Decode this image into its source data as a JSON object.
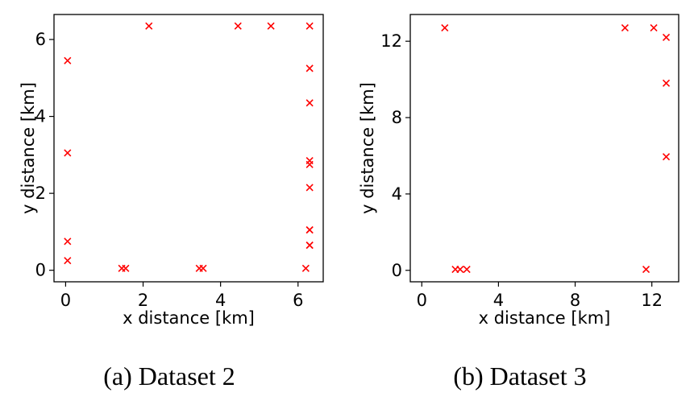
{
  "chart_data": [
    {
      "type": "scatter",
      "caption": "(a) Dataset 2",
      "xlabel": "x distance [km]",
      "ylabel": "y distance [km]",
      "xlim": [
        -0.3,
        6.65
      ],
      "ylim": [
        -0.3,
        6.65
      ],
      "xticks": [
        0,
        2,
        4,
        6
      ],
      "yticks": [
        0,
        2,
        4,
        6
      ],
      "grid": false,
      "marker": "x",
      "color": "#ff0000",
      "x": [
        0.05,
        0.05,
        0.05,
        0.05,
        1.45,
        1.55,
        2.15,
        3.45,
        3.55,
        4.45,
        5.3,
        6.2,
        6.3,
        6.3,
        6.3,
        6.3,
        6.3,
        6.3,
        6.3,
        6.3,
        6.3,
        6.3
      ],
      "y": [
        0.25,
        0.75,
        3.05,
        5.45,
        0.05,
        0.05,
        6.35,
        0.05,
        0.05,
        6.35,
        6.35,
        0.05,
        0.65,
        1.05,
        2.15,
        2.75,
        2.85,
        4.35,
        5.25,
        6.35,
        0.65,
        1.05
      ]
    },
    {
      "type": "scatter",
      "caption": "(b) Dataset 3",
      "xlabel": "x distance [km]",
      "ylabel": "y distance [km]",
      "xlim": [
        -0.6,
        13.4
      ],
      "ylim": [
        -0.6,
        13.4
      ],
      "xticks": [
        0,
        4,
        8,
        12
      ],
      "yticks": [
        0,
        4,
        8,
        12
      ],
      "grid": false,
      "marker": "x",
      "color": "#ff0000",
      "x": [
        1.2,
        1.75,
        2.0,
        2.35,
        10.6,
        11.7,
        12.1,
        12.75,
        12.75,
        12.75
      ],
      "y": [
        12.7,
        0.05,
        0.05,
        0.05,
        12.7,
        0.05,
        12.7,
        12.2,
        9.8,
        5.95
      ]
    }
  ]
}
